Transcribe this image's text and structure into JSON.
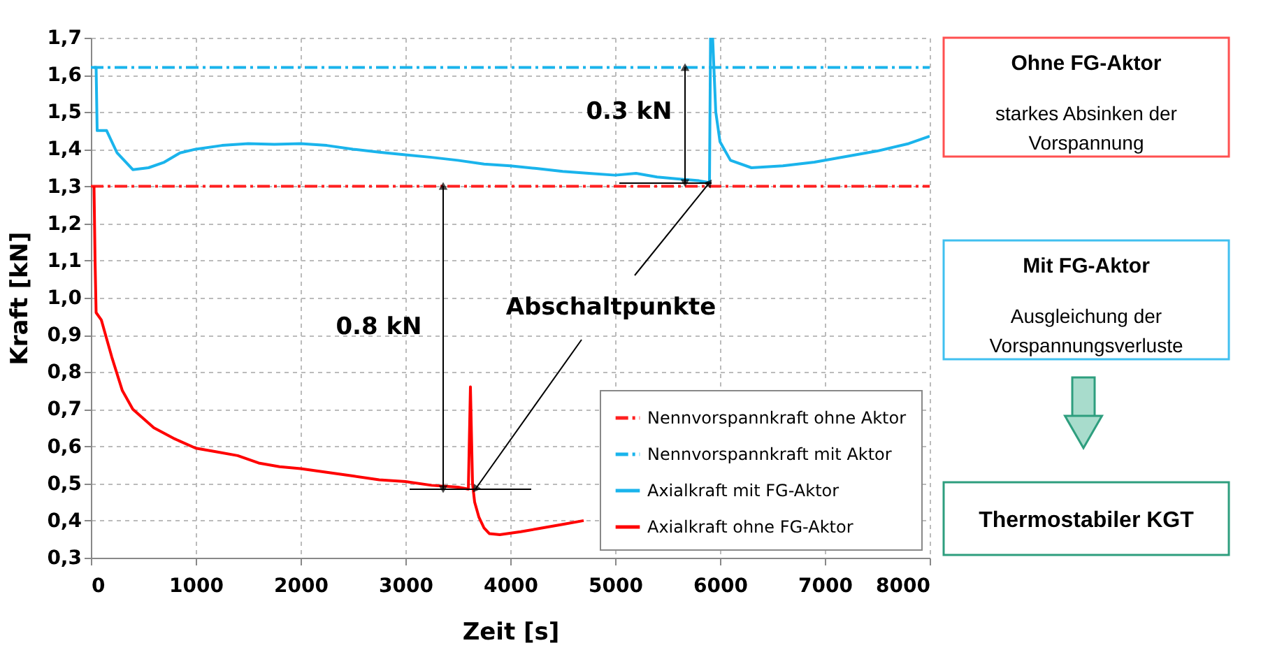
{
  "chart_data": [
    {
      "type": "line",
      "xlabel": "Zeit [s]",
      "ylabel": "Kraft [kN]",
      "xlim": [
        0,
        8000
      ],
      "xticks": [
        0,
        1000,
        2000,
        3000,
        4000,
        5000,
        6000,
        7000,
        8000
      ],
      "ylim": [
        0.3,
        1.7
      ],
      "yticks": [
        {
          "value": 0.3,
          "label": "0,3"
        },
        {
          "value": 0.4,
          "label": "0,4"
        },
        {
          "value": 0.5,
          "label": "0,5"
        },
        {
          "value": 0.6,
          "label": "0,6"
        },
        {
          "value": 0.7,
          "label": "0,7"
        },
        {
          "value": 0.8,
          "label": "0,8"
        },
        {
          "value": 0.9,
          "label": "0,9"
        },
        {
          "value": 1.0,
          "label": "1,0"
        },
        {
          "value": 1.1,
          "label": "1,1"
        },
        {
          "value": 1.2,
          "label": "1,2"
        },
        {
          "value": 1.3,
          "label": "1,3"
        },
        {
          "value": 1.4,
          "label": "1,4"
        },
        {
          "value": 1.5,
          "label": "1,5"
        },
        {
          "value": 1.6,
          "label": "1,6"
        },
        {
          "value": 1.7,
          "label": "1,7"
        }
      ],
      "grid": true,
      "legend": "bottom right",
      "series": [
        {
          "name": "Nennvorspannkraft ohne Aktor",
          "color": "#ff2020",
          "line_style": "dashed",
          "x": [
            0,
            8000
          ],
          "values": [
            1.3,
            1.3
          ]
        },
        {
          "name": "Nennvorspannkraft mit Aktor",
          "color": "#1ab4ec",
          "line_style": "dashed",
          "x": [
            0,
            8000
          ],
          "values": [
            1.62,
            1.62
          ]
        },
        {
          "name": "Axialkraft mit FG-Aktor",
          "color": "#1ab4ec",
          "line_style": "solid",
          "x": [
            30,
            50,
            60,
            150,
            250,
            400,
            550,
            700,
            850,
            1000,
            1250,
            1500,
            1750,
            2000,
            2250,
            2500,
            2750,
            3000,
            3250,
            3500,
            3750,
            4000,
            4250,
            4500,
            4750,
            5000,
            5200,
            5400,
            5600,
            5800,
            5900,
            5910,
            5930,
            5960,
            6000,
            6100,
            6300,
            6600,
            6900,
            7200,
            7500,
            7800,
            8000
          ],
          "values": [
            1.62,
            1.62,
            1.45,
            1.45,
            1.39,
            1.345,
            1.35,
            1.365,
            1.39,
            1.4,
            1.41,
            1.415,
            1.413,
            1.415,
            1.41,
            1.4,
            1.392,
            1.385,
            1.378,
            1.37,
            1.36,
            1.355,
            1.348,
            1.34,
            1.335,
            1.33,
            1.335,
            1.325,
            1.32,
            1.315,
            1.31,
            1.7,
            1.7,
            1.5,
            1.42,
            1.37,
            1.35,
            1.355,
            1.365,
            1.38,
            1.395,
            1.415,
            1.435
          ]
        },
        {
          "name": "Axialkraft ohne FG-Aktor",
          "color": "#ff0000",
          "line_style": "solid",
          "x": [
            30,
            40,
            50,
            100,
            150,
            200,
            300,
            400,
            500,
            600,
            800,
            1000,
            1200,
            1400,
            1600,
            1800,
            2000,
            2250,
            2500,
            2750,
            3000,
            3250,
            3500,
            3600,
            3620,
            3640,
            3660,
            3700,
            3750,
            3800,
            3900,
            4100,
            4300,
            4500,
            4700
          ],
          "values": [
            1.3,
            1.1,
            0.96,
            0.94,
            0.89,
            0.84,
            0.75,
            0.7,
            0.675,
            0.65,
            0.62,
            0.595,
            0.585,
            0.575,
            0.555,
            0.545,
            0.54,
            0.53,
            0.52,
            0.51,
            0.505,
            0.495,
            0.49,
            0.485,
            0.76,
            0.5,
            0.45,
            0.41,
            0.38,
            0.365,
            0.362,
            0.37,
            0.38,
            0.39,
            0.4
          ]
        }
      ],
      "annotations": [
        "0.3 kN",
        "0.8 kN",
        {
          "text": "Abschaltpunkte",
          "x": 5900,
          "y": 1.31
        }
      ]
    },
    {
      "type": "other",
      "annotations": [
        "Ohne FG-Aktor",
        "starkes Absinken der\nVorspannung",
        "Mit FG-Aktor",
        "Ausgleichung der\nVorspannungsverluste",
        "Thermostabiler KGT"
      ]
    }
  ]
}
